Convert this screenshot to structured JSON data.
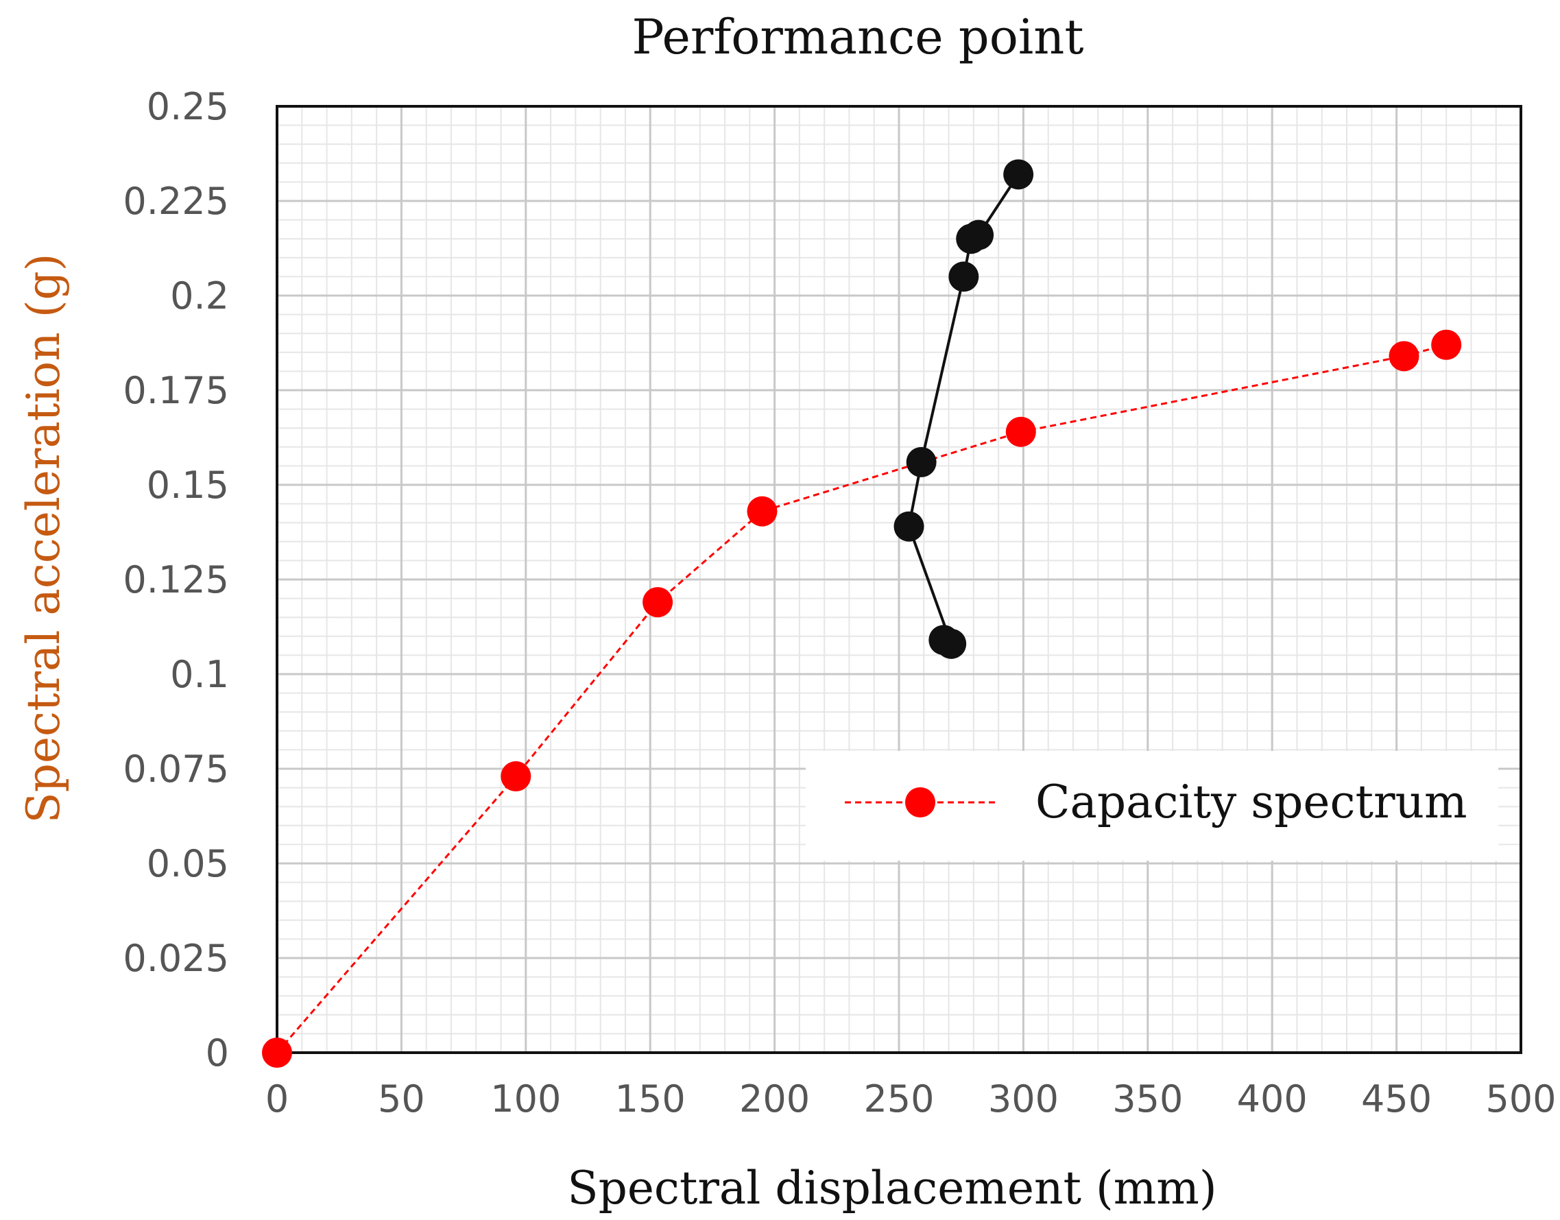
{
  "chart_data": {
    "type": "line",
    "title": "Performance point",
    "xlabel": "Spectral displacement (mm)",
    "ylabel": "Spectral acceleration (g)",
    "xlim": [
      0,
      500
    ],
    "ylim": [
      0,
      0.25
    ],
    "x_ticks": [
      "0",
      "50",
      "100",
      "150",
      "200",
      "250",
      "300",
      "350",
      "400",
      "450",
      "500"
    ],
    "y_ticks": [
      "0",
      "0.025",
      "0.05",
      "0.075",
      "0.1",
      "0.125",
      "0.15",
      "0.175",
      "0.2",
      "0.225",
      "0.25"
    ],
    "grid": true,
    "legend_position": "bottom-right",
    "series": [
      {
        "name": "Capacity spectrum",
        "color": "#ff0000",
        "style": "dashed",
        "points": [
          {
            "x": 0,
            "y": 0
          },
          {
            "x": 96,
            "y": 0.073
          },
          {
            "x": 153,
            "y": 0.119
          },
          {
            "x": 195,
            "y": 0.143
          },
          {
            "x": 299,
            "y": 0.164
          },
          {
            "x": 453,
            "y": 0.184
          },
          {
            "x": 470,
            "y": 0.187
          }
        ]
      },
      {
        "color": "#111111",
        "style": "solid",
        "points": [
          {
            "x": 268,
            "y": 0.109
          },
          {
            "x": 271,
            "y": 0.108
          },
          {
            "x": 254,
            "y": 0.139
          },
          {
            "x": 259,
            "y": 0.156
          },
          {
            "x": 276,
            "y": 0.205
          },
          {
            "x": 279,
            "y": 0.215
          },
          {
            "x": 282,
            "y": 0.216
          },
          {
            "x": 298,
            "y": 0.232
          }
        ]
      }
    ]
  }
}
